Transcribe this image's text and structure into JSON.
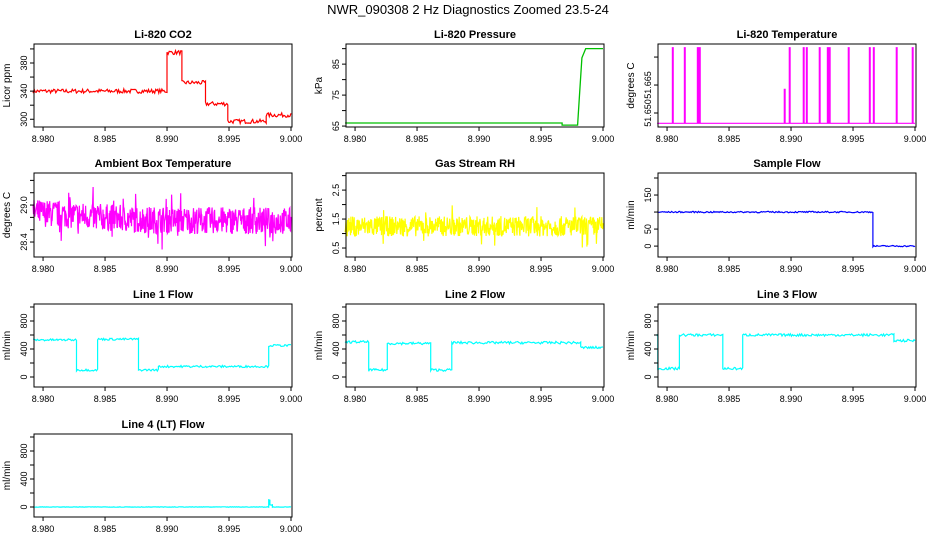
{
  "title": "NWR_090308  2 Hz Diagnostics Zoomed 23.5-24",
  "chart_data": [
    {
      "type": "line",
      "title": "Li-820 CO2",
      "ylabel": "Licor ppm",
      "color": "#ff0000",
      "xlim": [
        8.97927,
        9.00008
      ],
      "ylim": [
        289,
        407
      ],
      "yticks": [
        300,
        320,
        340,
        360,
        380,
        400
      ],
      "ylabels": [
        "300",
        "",
        "340",
        "",
        "380",
        ""
      ],
      "steps": [
        [
          8.9792,
          340
        ],
        [
          8.99,
          395
        ],
        [
          8.9912,
          352
        ],
        [
          8.9931,
          322
        ],
        [
          8.9949,
          297
        ],
        [
          8.998,
          306
        ],
        [
          9.0,
          306
        ]
      ]
    },
    {
      "type": "line",
      "title": "Li-820 Pressure",
      "ylabel": "kPa",
      "color": "#00c000",
      "xlim": [
        8.97927,
        9.00008
      ],
      "ylim": [
        64.7,
        91.5
      ],
      "yticks": [
        65,
        70,
        75,
        80,
        85,
        90
      ],
      "ylabels": [
        "65",
        "",
        "75",
        "",
        "85",
        ""
      ],
      "points": [
        [
          8.9792,
          66
        ],
        [
          8.9967,
          66
        ],
        [
          8.9967,
          65.3
        ],
        [
          8.99795,
          65.3
        ],
        [
          8.9981,
          75
        ],
        [
          8.9983,
          87
        ],
        [
          8.9986,
          90
        ],
        [
          9.0,
          90
        ]
      ]
    },
    {
      "type": "line",
      "title": "Li-820 Temperature",
      "ylabel": "degrees C",
      "color": "#ff00ff",
      "xlim": [
        8.97927,
        9.00008
      ],
      "ylim": [
        51.6425,
        51.687
      ],
      "yticks": [
        51.65,
        51.665,
        51.68
      ],
      "ylabels": [
        "51.650",
        "51.665",
        ""
      ],
      "baseline": 51.6445,
      "spike_top": 51.685,
      "spikes": [
        8.98043,
        8.9814,
        8.98245,
        8.98261,
        8.98946,
        8.98986,
        8.99099,
        8.99124,
        8.99228,
        8.99293,
        8.99309,
        8.99462,
        8.99632,
        8.99664,
        8.99849,
        8.99978
      ]
    },
    {
      "type": "line",
      "title": "Ambient Box Temperature",
      "ylabel": "degrees C",
      "color": "#ff00ff",
      "xlim": [
        8.97927,
        9.00008
      ],
      "ylim": [
        28.157,
        29.52
      ],
      "yticks": [
        28.4,
        28.6,
        28.8,
        29.0,
        29.2,
        29.4
      ],
      "ylabels": [
        "28.4",
        "",
        "",
        "29.0",
        "",
        ""
      ],
      "levels": [
        [
          8.9792,
          28.88
        ],
        [
          8.988,
          28.76
        ],
        [
          9.0,
          28.74
        ]
      ]
    },
    {
      "type": "line",
      "title": "Gas Stream RH",
      "ylabel": "percent",
      "color": "#ffff00",
      "xlim": [
        8.97927,
        9.00008
      ],
      "ylim": [
        0.19,
        3.09
      ],
      "yticks": [
        0.5,
        1.0,
        1.5,
        2.0,
        2.5,
        3.0
      ],
      "ylabels": [
        "0.5",
        "",
        "1.5",
        "",
        "2.5",
        ""
      ],
      "levels": [
        [
          8.9792,
          1.25
        ],
        [
          9.0,
          1.25
        ]
      ]
    },
    {
      "type": "line",
      "title": "Sample Flow",
      "ylabel": "ml/min",
      "color": "#0000ff",
      "xlim": [
        8.97927,
        9.00008
      ],
      "ylim": [
        -32,
        214.7
      ],
      "yticks": [
        0,
        50,
        100,
        150,
        200
      ],
      "ylabels": [
        "0",
        "50",
        "",
        "150",
        ""
      ],
      "steps": [
        [
          8.9792,
          100
        ],
        [
          8.9966,
          0
        ],
        [
          9.0,
          0
        ]
      ]
    },
    {
      "type": "line",
      "title": "Line 1 Flow",
      "ylabel": "ml/min",
      "color": "#00ffff",
      "xlim": [
        8.97927,
        9.00008
      ],
      "ylim": [
        -143,
        1043
      ],
      "yticks": [
        0,
        200,
        400,
        600,
        800,
        1000
      ],
      "ylabels": [
        "0",
        "",
        "400",
        "",
        "800",
        ""
      ],
      "steps": [
        [
          8.9792,
          530
        ],
        [
          8.9827,
          100
        ],
        [
          8.9844,
          540
        ],
        [
          8.9877,
          100
        ],
        [
          8.9893,
          150
        ],
        [
          8.9982,
          450
        ],
        [
          9.0,
          450
        ]
      ]
    },
    {
      "type": "line",
      "title": "Line 2 Flow",
      "ylabel": "ml/min",
      "color": "#00ffff",
      "xlim": [
        8.97927,
        9.00008
      ],
      "ylim": [
        -143,
        1043
      ],
      "yticks": [
        0,
        200,
        400,
        600,
        800,
        1000
      ],
      "ylabels": [
        "0",
        "",
        "400",
        "",
        "800",
        ""
      ],
      "steps": [
        [
          8.9792,
          500
        ],
        [
          8.9811,
          100
        ],
        [
          8.9826,
          480
        ],
        [
          8.9861,
          100
        ],
        [
          8.9878,
          490
        ],
        [
          8.9982,
          420
        ],
        [
          9.0,
          420
        ]
      ]
    },
    {
      "type": "line",
      "title": "Line 3 Flow",
      "ylabel": "ml/min",
      "color": "#00ffff",
      "xlim": [
        8.97927,
        9.00008
      ],
      "ylim": [
        -143,
        1043
      ],
      "yticks": [
        0,
        200,
        400,
        600,
        800,
        1000
      ],
      "ylabels": [
        "0",
        "",
        "400",
        "",
        "800",
        ""
      ],
      "steps": [
        [
          8.9792,
          600
        ],
        [
          8.97925,
          120
        ],
        [
          8.981,
          600
        ],
        [
          8.9845,
          120
        ],
        [
          8.9861,
          600
        ],
        [
          8.9983,
          520
        ],
        [
          9.0,
          520
        ]
      ]
    },
    {
      "type": "line",
      "title": "Line 4 (LT) Flow",
      "ylabel": "ml/min",
      "color": "#00ffff",
      "xlim": [
        8.97927,
        9.00008
      ],
      "ylim": [
        -143,
        1043
      ],
      "yticks": [
        0,
        200,
        400,
        600,
        800,
        1000
      ],
      "ylabels": [
        "0",
        "",
        "400",
        "",
        "800",
        ""
      ],
      "steps": [
        [
          8.9792,
          0
        ],
        [
          8.9982,
          100
        ],
        [
          8.9983,
          30
        ],
        [
          8.9985,
          0
        ],
        [
          9.0,
          0
        ]
      ]
    }
  ],
  "xticks": [
    8.98,
    8.985,
    8.99,
    8.995,
    9.0
  ],
  "xtick_labels": [
    "8.980",
    "8.985",
    "8.990",
    "8.995",
    "9.000"
  ]
}
